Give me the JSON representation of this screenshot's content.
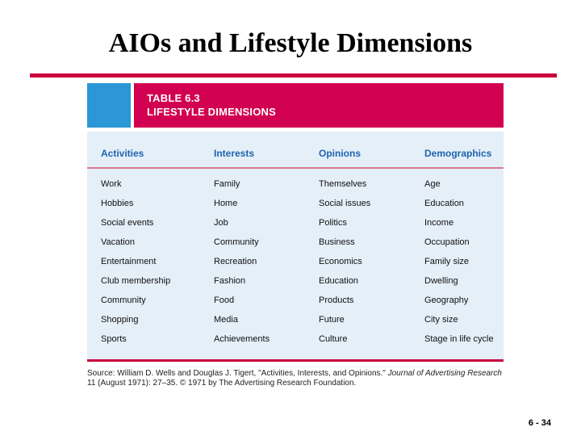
{
  "slide": {
    "title": "AIOs and Lifestyle Dimensions",
    "page_number": "6 - 34"
  },
  "table": {
    "label": "TABLE 6.3",
    "caption": "LIFESTYLE DIMENSIONS",
    "columns": [
      "Activities",
      "Interests",
      "Opinions",
      "Demographics"
    ],
    "rows": [
      [
        "Work",
        "Family",
        "Themselves",
        "Age"
      ],
      [
        "Hobbies",
        "Home",
        "Social issues",
        "Education"
      ],
      [
        "Social events",
        "Job",
        "Politics",
        "Income"
      ],
      [
        "Vacation",
        "Community",
        "Business",
        "Occupation"
      ],
      [
        "Entertainment",
        "Recreation",
        "Economics",
        "Family size"
      ],
      [
        "Club membership",
        "Fashion",
        "Education",
        "Dwelling"
      ],
      [
        "Community",
        "Food",
        "Products",
        "Geography"
      ],
      [
        "Shopping",
        "Media",
        "Future",
        "City size"
      ],
      [
        "Sports",
        "Achievements",
        "Culture",
        "Stage in life cycle"
      ]
    ]
  },
  "source": {
    "prefix": "Source: William D. Wells and Douglas J. Tigert, \"Activities, Interests, and Opinions.\" ",
    "journal": "Journal of Advertising Research",
    "suffix": " 11 (August 1971): 27–35. © 1971 by The Advertising Research Foundation."
  },
  "colors": {
    "accent_red": "#d20050",
    "accent_blue": "#2b97d6",
    "header_text": "#1f63ad",
    "panel_bg": "#e4eff8"
  }
}
